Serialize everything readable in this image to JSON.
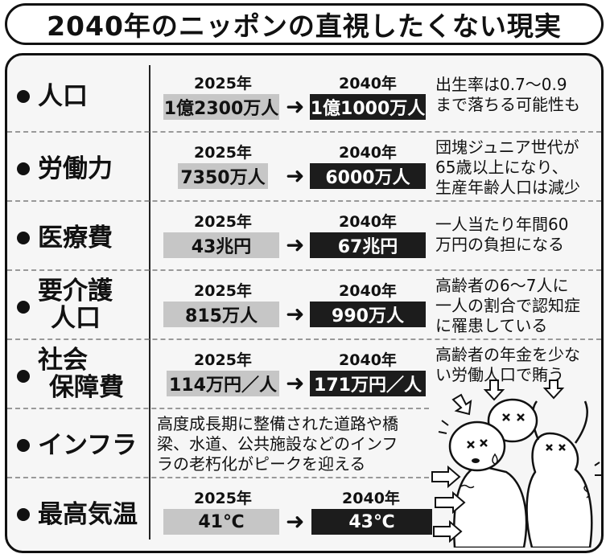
{
  "title": "2040年のニッポンの直視したくない現実",
  "rows": [
    {
      "label": "人口",
      "y1": "2025年",
      "y2": "2040年",
      "v1": "1億2300万人",
      "v2": "1億1000万人",
      "note": [
        "出生率は0.7〜0.9",
        "まで落ちる可能性も"
      ]
    },
    {
      "label": "労働力",
      "y1": "2025年",
      "y2": "2040年",
      "v1": "7350万人",
      "v2": "6000万人",
      "note": [
        "団塊ジュニア世代が",
        "65歳以上になり、",
        "生産年齢人口は減少"
      ]
    },
    {
      "label": "医療費",
      "y1": "2025年",
      "y2": "2040年",
      "v1": "43兆円",
      "v2": "67兆円",
      "note": [
        "一人当たり年間60",
        "万円の負担になる"
      ]
    },
    {
      "label1": "要介護",
      "label2": "人口",
      "y1": "2025年",
      "y2": "2040年",
      "v1": "815万人",
      "v2": "990万人",
      "note": [
        "高齢者の6〜7人に",
        "一人の割合で認知症",
        "に罹患している"
      ]
    },
    {
      "label1": "社会",
      "label2": "保障費",
      "y1": "2025年",
      "y2": "2040年",
      "v1": "114万円／人",
      "v2": "171万円／人",
      "note": [
        "高齢者の年金を少な",
        "い労働人口で賄う"
      ]
    },
    {
      "label": "インフラ",
      "text": [
        "高度成長期に整備された道路や橋",
        "梁、水道、公共施設などのインフ",
        "ラの老朽化がピークを迎える"
      ]
    },
    {
      "label": "最高気温",
      "y1": "2025年",
      "y2": "2040年",
      "v1": "41℃",
      "v2": "43℃"
    }
  ],
  "colors": {
    "gray_box": "#c6c6c6",
    "dark_box": "#1c1c1c",
    "panel": "#f6f6f6"
  },
  "arrow_symbol": "➜",
  "illustration": "elderly-figures-pushed-by-arrows"
}
